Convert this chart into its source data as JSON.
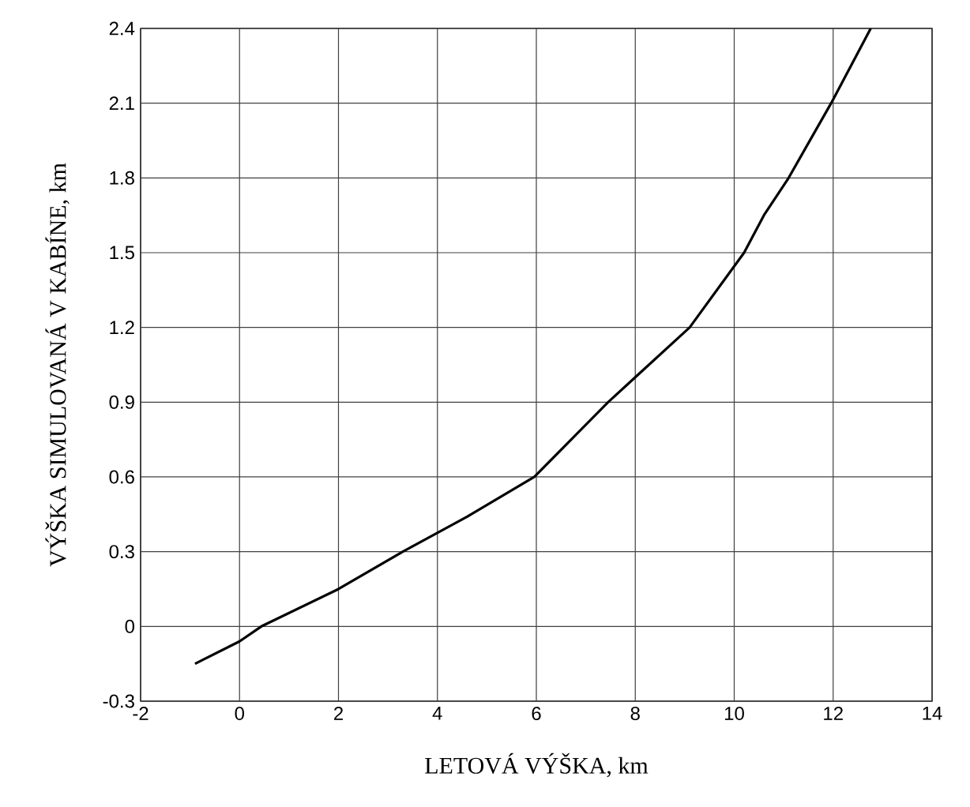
{
  "chart_data": {
    "type": "line",
    "xlabel": "LETOVÁ VÝŠKA, km",
    "ylabel": "VÝŠKA SIMULOVANÁ V KABÍNE, km",
    "x": [
      -0.9,
      0,
      0.44,
      2,
      3.3,
      4.6,
      5.96,
      7.45,
      8,
      9.1,
      10.2,
      10.6,
      11.1,
      11.96,
      12.76
    ],
    "series": [
      {
        "color": "#000000",
        "values": [
          -0.15,
          -0.06,
          0,
          0.15,
          0.3,
          0.44,
          0.6,
          0.9,
          1.0,
          1.2,
          1.5,
          1.65,
          1.8,
          2.1,
          2.4
        ]
      }
    ],
    "xlim": [
      -2,
      14
    ],
    "ylim": [
      -0.3,
      2.4
    ],
    "xticks": [
      -2,
      0,
      2,
      4,
      6,
      8,
      10,
      12,
      14
    ],
    "yticks": [
      -0.3,
      0,
      0.3,
      0.6,
      0.9,
      1.2,
      1.5,
      1.8,
      2.1,
      2.4
    ],
    "grid": true,
    "marker": "none",
    "line_style": "solid"
  }
}
